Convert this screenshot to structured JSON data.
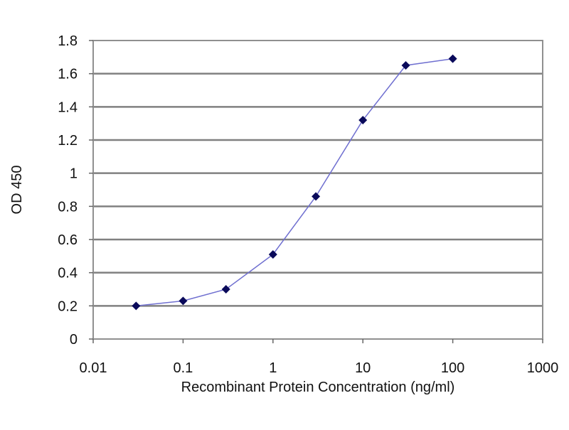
{
  "chart_data": {
    "type": "line",
    "title": "",
    "xlabel": "Recombinant Protein Concentration (ng/ml)",
    "ylabel": "OD 450",
    "x_scale": "log",
    "xlim": [
      0.01,
      1000
    ],
    "ylim": [
      0,
      1.8
    ],
    "x_ticks": [
      "0.01",
      "0.1",
      "1",
      "10",
      "100",
      "1000"
    ],
    "y_ticks": [
      "0",
      "0.2",
      "0.4",
      "0.6",
      "0.8",
      "1",
      "1.2",
      "1.4",
      "1.6",
      "1.8"
    ],
    "grid": "horizontal",
    "series": [
      {
        "x": [
          0.03,
          0.1,
          0.3,
          1,
          3,
          10,
          30,
          100
        ],
        "y": [
          0.2,
          0.23,
          0.3,
          0.51,
          0.86,
          1.32,
          1.65,
          1.69
        ]
      }
    ],
    "colors": {
      "line": "#6f6fd0",
      "marker": "#0a0a5a",
      "grid": "#808080"
    }
  }
}
